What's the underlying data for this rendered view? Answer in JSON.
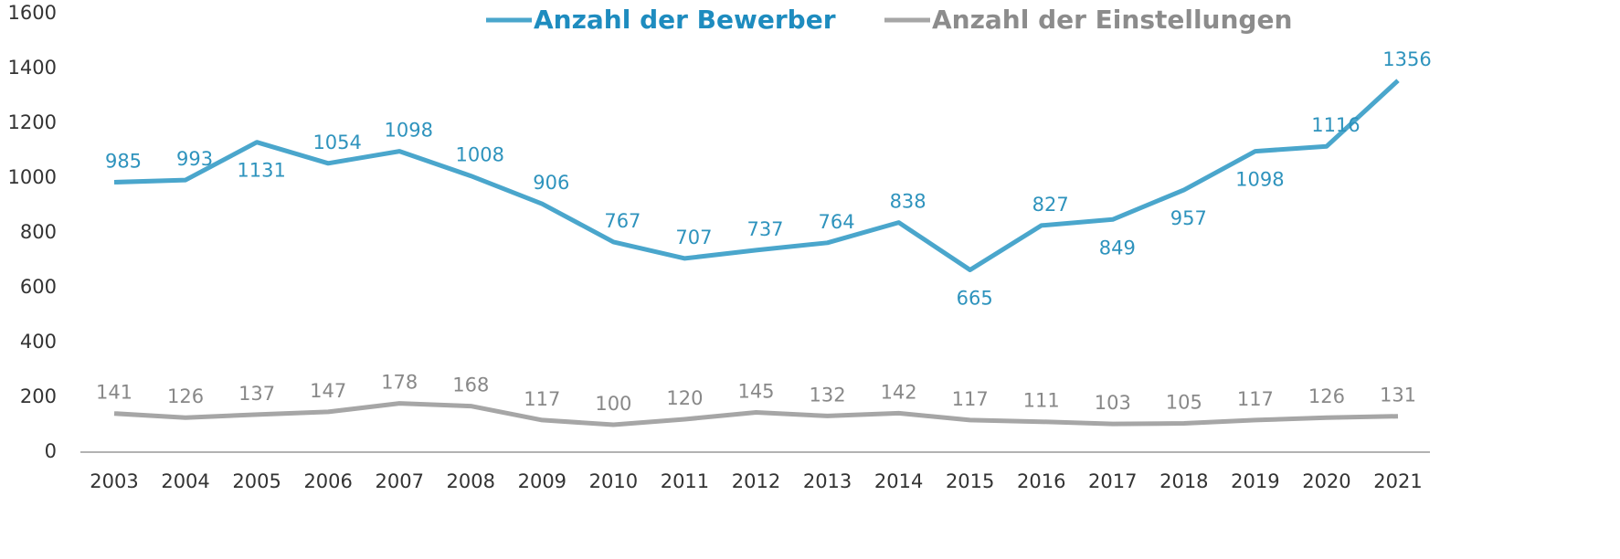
{
  "chart_data": {
    "type": "line",
    "categories": [
      "2003",
      "2004",
      "2005",
      "2006",
      "2007",
      "2008",
      "2009",
      "2010",
      "2011",
      "2012",
      "2013",
      "2014",
      "2015",
      "2016",
      "2017",
      "2018",
      "2019",
      "2020",
      "2021"
    ],
    "series": [
      {
        "name": "Anzahl der Bewerber",
        "color": "#4aa6cc",
        "values": [
          985,
          993,
          1131,
          1054,
          1098,
          1008,
          906,
          767,
          707,
          737,
          764,
          838,
          665,
          827,
          849,
          957,
          1098,
          1116,
          1356
        ]
      },
      {
        "name": "Anzahl der Einstellungen",
        "color": "#a6a6a6",
        "values": [
          141,
          126,
          137,
          147,
          178,
          168,
          117,
          100,
          120,
          145,
          132,
          142,
          117,
          111,
          103,
          105,
          117,
          126,
          131
        ]
      }
    ],
    "ylim": [
      0,
      1600
    ],
    "yticks": [
      0,
      200,
      400,
      600,
      800,
      1000,
      1200,
      1400,
      1600
    ],
    "grid": false,
    "legend": "top"
  }
}
